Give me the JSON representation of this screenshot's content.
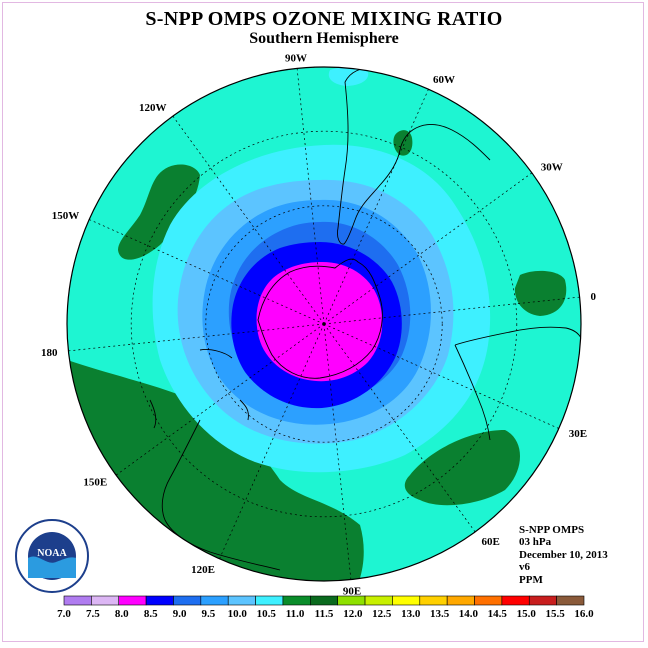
{
  "title": "S-NPP OMPS OZONE MIXING RATIO",
  "subtitle": "Southern Hemisphere",
  "longitude_labels": [
    {
      "text": "90W",
      "lon": -90
    },
    {
      "text": "60W",
      "lon": -60
    },
    {
      "text": "30W",
      "lon": -30
    },
    {
      "text": "0",
      "lon": 0
    },
    {
      "text": "30E",
      "lon": 30
    },
    {
      "text": "60E",
      "lon": 60
    },
    {
      "text": "90E",
      "lon": 90
    },
    {
      "text": "120E",
      "lon": 120
    },
    {
      "text": "150E",
      "lon": 150
    },
    {
      "text": "180",
      "lon": 180
    },
    {
      "text": "150W",
      "lon": -150
    },
    {
      "text": "120W",
      "lon": -120
    }
  ],
  "info": {
    "instrument": "S-NPP OMPS",
    "level": "03 hPa",
    "date": "December 10, 2013",
    "version": "v6",
    "units": "PPM"
  },
  "logo_text": "NOAA",
  "colorbar": {
    "labels": [
      "7.0",
      "7.5",
      "8.0",
      "8.5",
      "9.0",
      "9.5",
      "10.0",
      "10.5",
      "11.0",
      "11.5",
      "12.0",
      "12.5",
      "13.0",
      "13.5",
      "14.0",
      "14.5",
      "15.0",
      "15.5",
      "16.0"
    ],
    "colors": [
      "#b07cf0",
      "#dcb6f4",
      "#ff00ff",
      "#0000ff",
      "#1e6ef0",
      "#2ca0ff",
      "#5cc4ff",
      "#3ef0ff",
      "#0a8c2a",
      "#0a6a1e",
      "#8ee000",
      "#c8f000",
      "#ffff00",
      "#ffd000",
      "#ffa800",
      "#ff7000",
      "#ff0000",
      "#c81e1e",
      "#8a5a3a"
    ]
  },
  "colors": {
    "c11_0": "#1ef5d2",
    "c10_5": "#3ef0ff",
    "c10_0": "#5cc4ff",
    "c9_5": "#2ca0ff",
    "c9_0": "#1e6ef0",
    "c8_5": "#0000ff",
    "c8_0": "#ff00ff",
    "c11_5": "#0a8030"
  }
}
